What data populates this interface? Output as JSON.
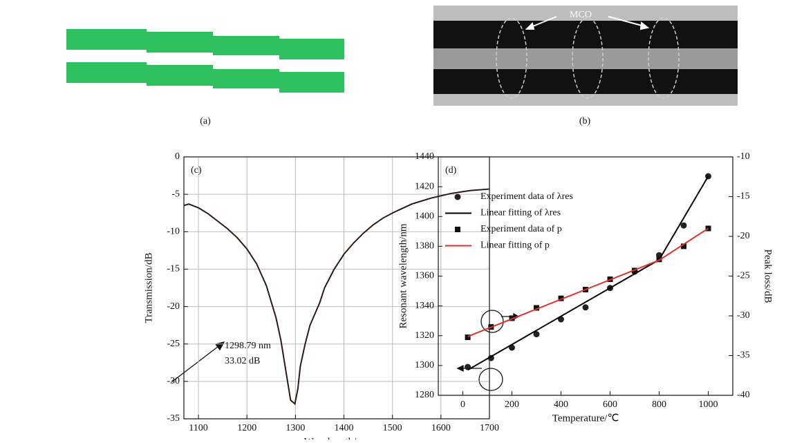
{
  "panel_a": {
    "caption": "(a)"
  },
  "panel_b": {
    "caption": "(b)",
    "label": "MCO"
  },
  "chart_data": [
    {
      "type": "line",
      "panel_label": "(c)",
      "xlabel": "Wavelength/nm",
      "ylabel": "Transmission/dB",
      "xlim": [
        1070,
        1700
      ],
      "xticks": [
        1100,
        1200,
        1300,
        1400,
        1500,
        1600,
        1700
      ],
      "ylim": [
        -35,
        0
      ],
      "yticks": [
        0,
        -5,
        -10,
        -15,
        -20,
        -25,
        -30,
        -35
      ],
      "grid": true,
      "annotations": [
        "1298.79 nm",
        "33.02 dB"
      ],
      "series": [
        {
          "color": "#2a1a14",
          "x": [
            1070,
            1080,
            1100,
            1120,
            1140,
            1160,
            1180,
            1200,
            1220,
            1240,
            1260,
            1270,
            1280,
            1290,
            1298.79,
            1305,
            1310,
            1320,
            1330,
            1340,
            1350,
            1360,
            1380,
            1400,
            1420,
            1440,
            1460,
            1480,
            1500,
            1520,
            1540,
            1560,
            1580,
            1600,
            1620,
            1640,
            1660,
            1680,
            1700
          ],
          "values": [
            -6.5,
            -6.3,
            -6.8,
            -7.6,
            -8.6,
            -9.6,
            -10.8,
            -12.3,
            -14.3,
            -17.2,
            -21.5,
            -24.5,
            -28.5,
            -32.5,
            -33.0,
            -31,
            -28,
            -25,
            -22.5,
            -21,
            -19.5,
            -17.5,
            -15,
            -13,
            -11.5,
            -10.2,
            -9.1,
            -8.2,
            -7.5,
            -6.9,
            -6.3,
            -5.9,
            -5.5,
            -5.2,
            -4.9,
            -4.7,
            -4.5,
            -4.4,
            -4.3
          ]
        }
      ]
    },
    {
      "type": "combo",
      "panel_label": "(d)",
      "xlabel": "Temperature/℃",
      "ylabel": "Resonant wavelength/nm",
      "y2label": "Peak loss/dB",
      "xlim": [
        -100,
        1100
      ],
      "xticks": [
        0,
        200,
        400,
        600,
        800,
        1000
      ],
      "ylim": [
        1280,
        1440
      ],
      "yticks": [
        1280,
        1300,
        1320,
        1340,
        1360,
        1380,
        1400,
        1420,
        1440
      ],
      "y2lim": [
        -40,
        -10
      ],
      "y2ticks": [
        -10,
        -15,
        -20,
        -25,
        -30,
        -35,
        -40
      ],
      "legend": "upper-left",
      "series": [
        {
          "name": "Experiment data of λres",
          "kind": "scatter",
          "marker": "circle",
          "color": "#222",
          "x": [
            20,
            115,
            200,
            300,
            400,
            500,
            600,
            700,
            800,
            900,
            1000
          ],
          "values": [
            1299,
            1305,
            1312,
            1321,
            1331,
            1339,
            1352,
            1363,
            1374,
            1394,
            1427
          ]
        },
        {
          "name": "Linear fitting of λres",
          "kind": "line",
          "color": "#000",
          "x": [
            20,
            800,
            1000
          ],
          "values": [
            1297,
            1371,
            1427
          ]
        },
        {
          "name": "Experiment data of p",
          "kind": "scatter",
          "marker": "square",
          "color": "#111",
          "axis": "y2",
          "x": [
            20,
            115,
            200,
            300,
            400,
            500,
            600,
            700,
            800,
            900,
            1000
          ],
          "values": [
            -32.7,
            -31.4,
            -30.3,
            -29.0,
            -27.8,
            -26.7,
            -25.4,
            -24.3,
            -22.9,
            -21.25,
            -19.0
          ]
        },
        {
          "name": "Linear fitting of p",
          "kind": "line",
          "color": "#e0302a",
          "axis": "y2",
          "x": [
            20,
            800,
            1000
          ],
          "values": [
            -32.6,
            -23.0,
            -19.0
          ]
        }
      ]
    }
  ]
}
